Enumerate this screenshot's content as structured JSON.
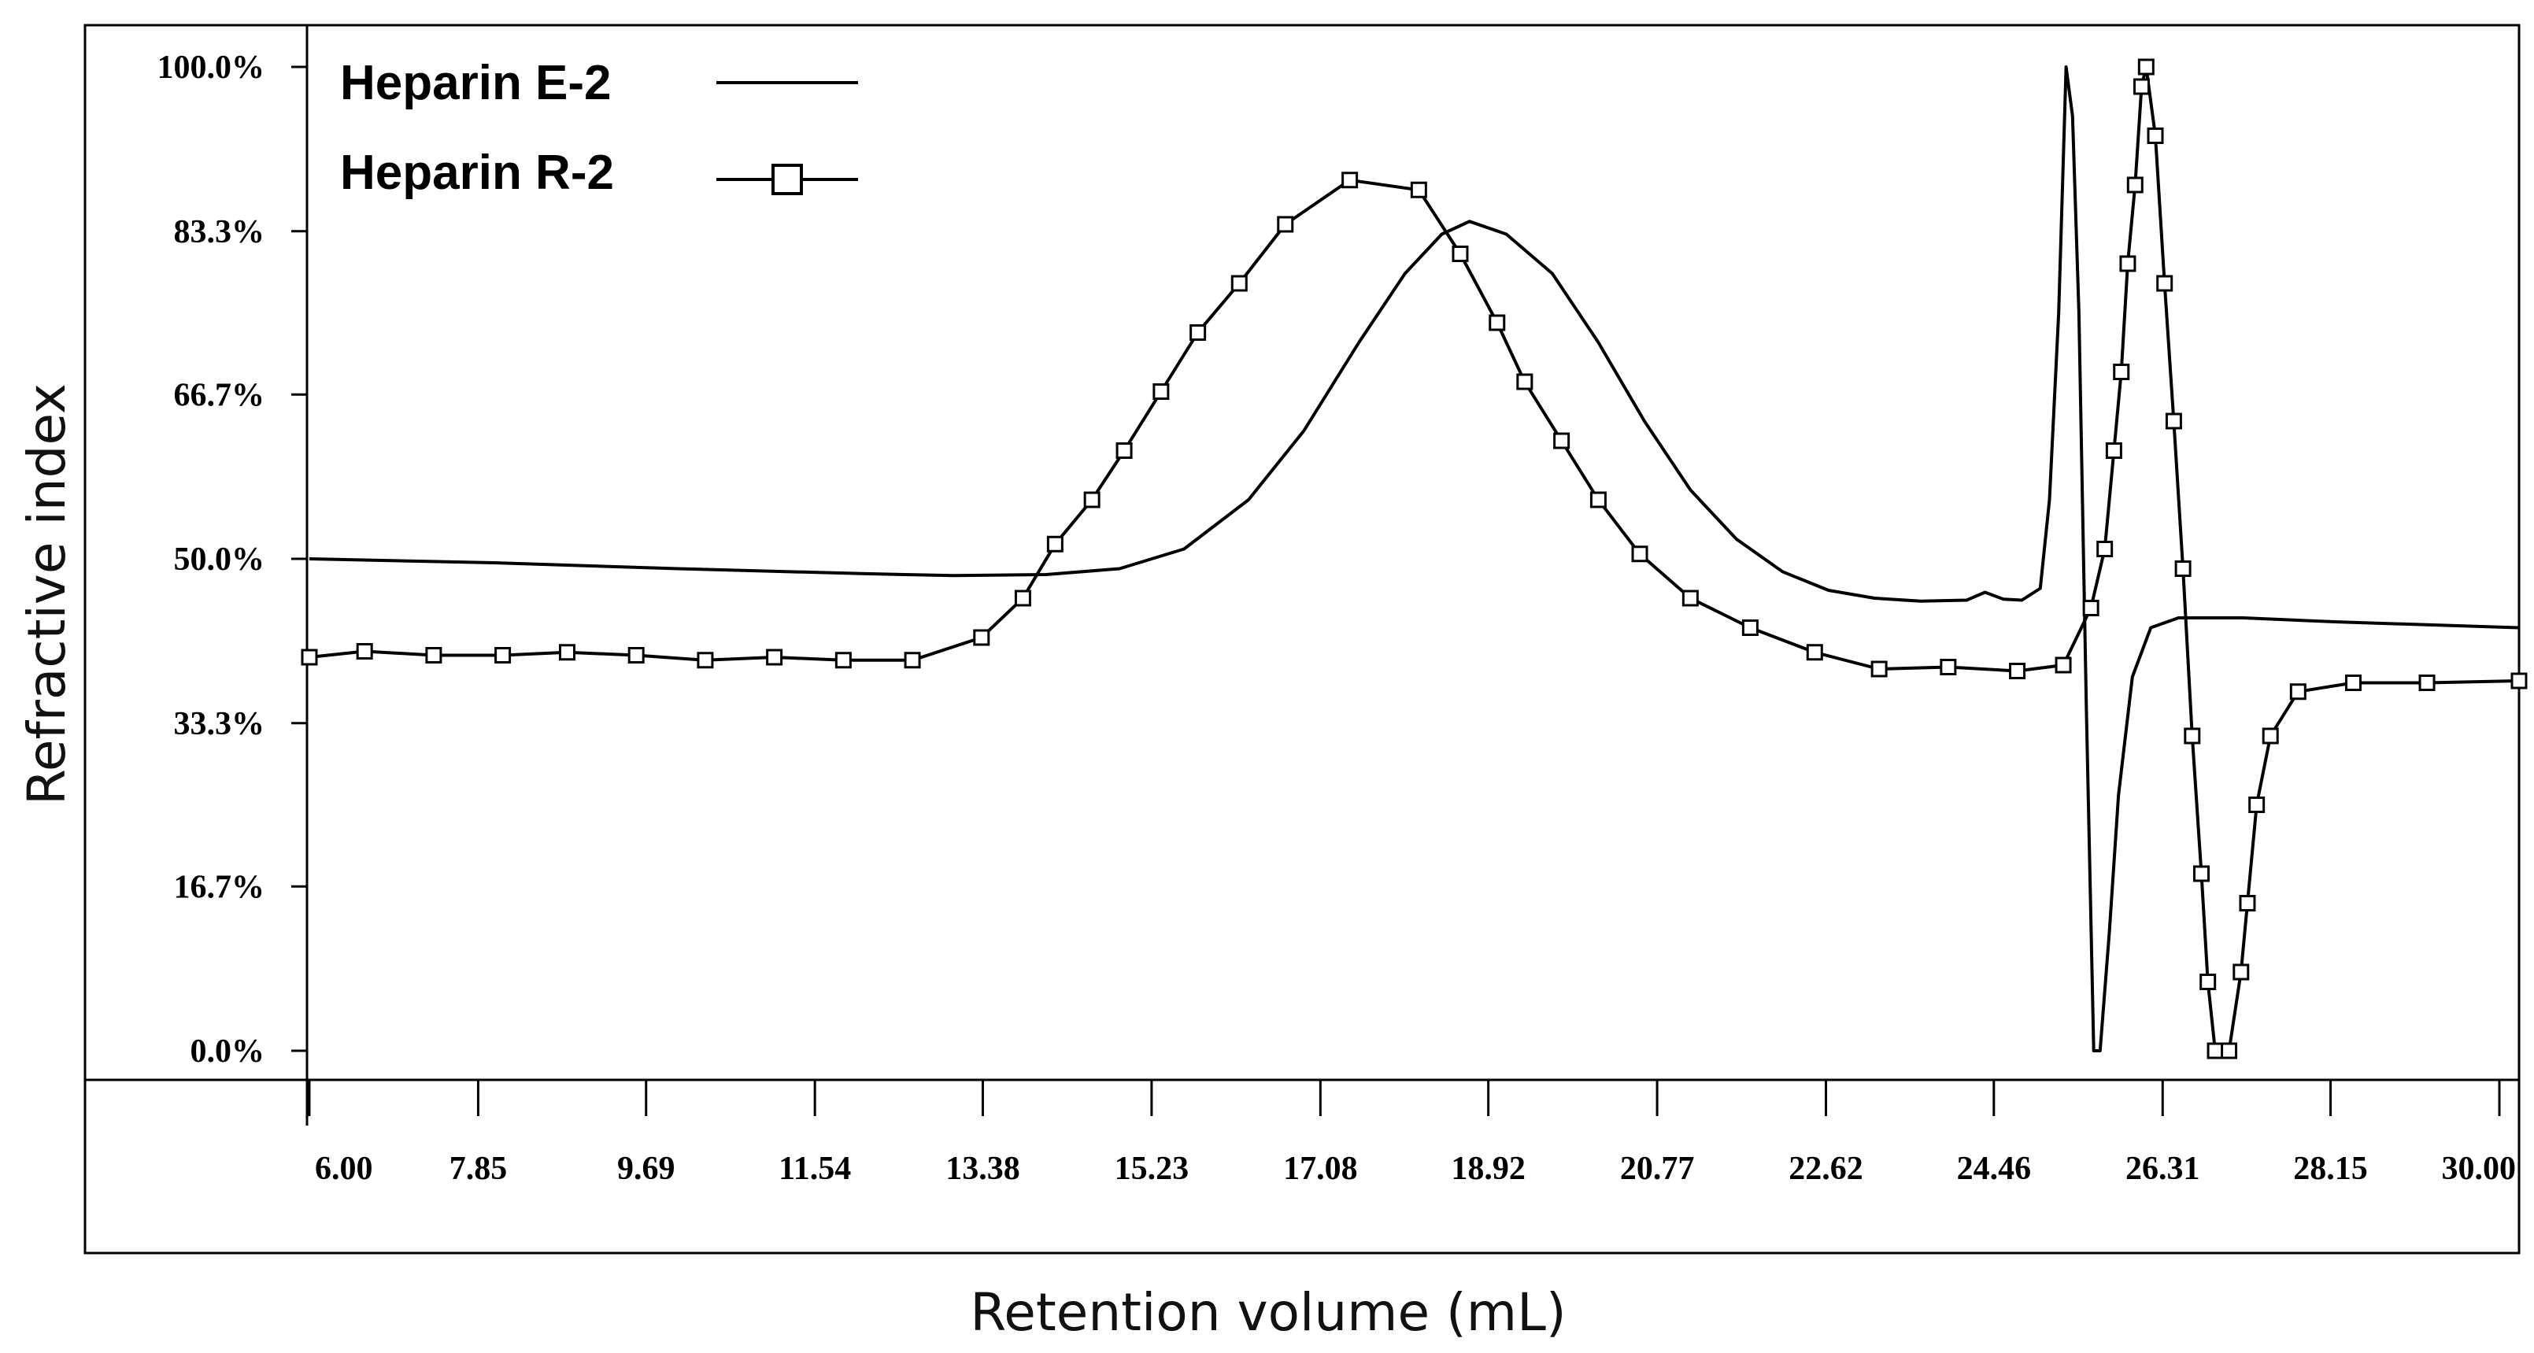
{
  "chart_data": {
    "type": "line",
    "title": "",
    "xlabel": "Retention volume (mL)",
    "ylabel": "Refractive index",
    "xlim": [
      6.0,
      30.0
    ],
    "ylim": [
      0.0,
      100.0
    ],
    "x_ticks": [
      "6.00",
      "7.85",
      "9.69",
      "11.54",
      "13.38",
      "15.23",
      "17.08",
      "18.92",
      "20.77",
      "22.62",
      "24.46",
      "26.31",
      "28.15",
      "30.00"
    ],
    "x_tick_values": [
      6.0,
      7.85,
      9.69,
      11.54,
      13.38,
      15.23,
      17.08,
      18.92,
      20.77,
      22.62,
      24.46,
      26.31,
      28.15,
      30.0
    ],
    "y_ticks": [
      "100.0%",
      "83.3%",
      "66.7%",
      "50.0%",
      "33.3%",
      "16.7%",
      "0.0%"
    ],
    "y_tick_values": [
      100.0,
      83.3,
      66.7,
      50.0,
      33.3,
      16.7,
      0.0
    ],
    "legend_position": "top-left",
    "series": [
      {
        "name": "Heparin E-2",
        "marker": "none",
        "points": [
          [
            6.0,
            50.0
          ],
          [
            8.0,
            49.6
          ],
          [
            10.0,
            49.0
          ],
          [
            12.0,
            48.5
          ],
          [
            13.0,
            48.3
          ],
          [
            14.0,
            48.4
          ],
          [
            14.8,
            49.0
          ],
          [
            15.5,
            51.0
          ],
          [
            16.2,
            56.0
          ],
          [
            16.8,
            63.0
          ],
          [
            17.4,
            72.0
          ],
          [
            17.9,
            79.0
          ],
          [
            18.3,
            83.0
          ],
          [
            18.6,
            84.3
          ],
          [
            19.0,
            83.0
          ],
          [
            19.5,
            79.0
          ],
          [
            20.0,
            72.0
          ],
          [
            20.5,
            64.0
          ],
          [
            21.0,
            57.0
          ],
          [
            21.5,
            52.0
          ],
          [
            22.0,
            48.7
          ],
          [
            22.5,
            46.8
          ],
          [
            23.0,
            46.0
          ],
          [
            23.5,
            45.7
          ],
          [
            24.0,
            45.8
          ],
          [
            24.2,
            46.6
          ],
          [
            24.4,
            45.9
          ],
          [
            24.6,
            45.8
          ],
          [
            24.8,
            47.0
          ],
          [
            24.9,
            56.0
          ],
          [
            25.0,
            75.0
          ],
          [
            25.08,
            100.0
          ],
          [
            25.15,
            95.0
          ],
          [
            25.22,
            75.0
          ],
          [
            25.3,
            35.0
          ],
          [
            25.38,
            0.0
          ],
          [
            25.45,
            0.0
          ],
          [
            25.55,
            12.0
          ],
          [
            25.65,
            26.0
          ],
          [
            25.8,
            38.0
          ],
          [
            26.0,
            43.0
          ],
          [
            26.3,
            44.0
          ],
          [
            27.0,
            44.0
          ],
          [
            28.0,
            43.6
          ],
          [
            29.0,
            43.3
          ],
          [
            30.0,
            43.0
          ]
        ]
      },
      {
        "name": "Heparin R-2",
        "marker": "square",
        "points": [
          [
            6.0,
            40.0
          ],
          [
            6.6,
            40.6
          ],
          [
            7.35,
            40.2
          ],
          [
            8.1,
            40.2
          ],
          [
            8.8,
            40.5
          ],
          [
            9.55,
            40.2
          ],
          [
            10.3,
            39.7
          ],
          [
            11.05,
            40.0
          ],
          [
            11.8,
            39.7
          ],
          [
            12.55,
            39.7
          ],
          [
            13.3,
            42.0
          ],
          [
            13.75,
            46.0
          ],
          [
            14.1,
            51.5
          ],
          [
            14.5,
            56.0
          ],
          [
            14.85,
            61.0
          ],
          [
            15.25,
            67.0
          ],
          [
            15.65,
            73.0
          ],
          [
            16.1,
            78.0
          ],
          [
            16.6,
            84.0
          ],
          [
            17.3,
            88.5
          ],
          [
            18.05,
            87.5
          ],
          [
            18.5,
            81.0
          ],
          [
            18.9,
            74.0
          ],
          [
            19.2,
            68.0
          ],
          [
            19.6,
            62.0
          ],
          [
            20.0,
            56.0
          ],
          [
            20.45,
            50.5
          ],
          [
            21.0,
            46.0
          ],
          [
            21.65,
            43.0
          ],
          [
            22.35,
            40.5
          ],
          [
            23.05,
            38.8
          ],
          [
            23.8,
            39.0
          ],
          [
            24.55,
            38.6
          ],
          [
            25.05,
            39.2
          ],
          [
            25.35,
            45.0
          ],
          [
            25.5,
            51.0
          ],
          [
            25.6,
            61.0
          ],
          [
            25.68,
            69.0
          ],
          [
            25.75,
            80.0
          ],
          [
            25.83,
            88.0
          ],
          [
            25.9,
            98.0
          ],
          [
            25.95,
            100.0
          ],
          [
            26.05,
            93.0
          ],
          [
            26.15,
            78.0
          ],
          [
            26.25,
            64.0
          ],
          [
            26.35,
            49.0
          ],
          [
            26.45,
            32.0
          ],
          [
            26.55,
            18.0
          ],
          [
            26.62,
            7.0
          ],
          [
            26.7,
            0.0
          ],
          [
            26.85,
            0.0
          ],
          [
            26.98,
            8.0
          ],
          [
            27.05,
            15.0
          ],
          [
            27.15,
            25.0
          ],
          [
            27.3,
            32.0
          ],
          [
            27.6,
            36.5
          ],
          [
            28.2,
            37.4
          ],
          [
            29.0,
            37.4
          ],
          [
            30.0,
            37.6
          ]
        ]
      }
    ]
  }
}
